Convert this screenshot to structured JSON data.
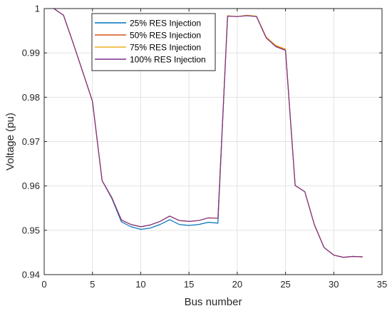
{
  "chart_data": {
    "type": "line",
    "xlabel": "Bus number",
    "ylabel": "Voltage (pu)",
    "xlim": [
      0,
      35
    ],
    "ylim": [
      0.94,
      1.0
    ],
    "xticks": [
      0,
      5,
      10,
      15,
      20,
      25,
      30,
      35
    ],
    "xtick_labels": [
      "0",
      "5",
      "10",
      "15",
      "20",
      "25",
      "30",
      "35"
    ],
    "yticks": [
      0.94,
      0.95,
      0.96,
      0.97,
      0.98,
      0.99,
      1.0
    ],
    "ytick_labels": [
      "0.94",
      "0.95",
      "0.96",
      "0.97",
      "0.98",
      "0.99",
      "1"
    ],
    "grid": true,
    "legend_position": "top-left",
    "x": [
      1,
      2,
      3,
      4,
      5,
      6,
      7,
      8,
      9,
      10,
      11,
      12,
      13,
      14,
      15,
      16,
      17,
      18,
      19,
      20,
      21,
      22,
      23,
      24,
      25,
      26,
      27,
      28,
      29,
      30,
      31,
      32,
      33
    ],
    "series": [
      {
        "name": "25% RES Injection",
        "color": "#0072BD",
        "values": [
          1.0,
          0.9985,
          0.9922,
          0.9857,
          0.9791,
          0.9612,
          0.9572,
          0.9519,
          0.9508,
          0.9502,
          0.9505,
          0.9513,
          0.9524,
          0.9513,
          0.9511,
          0.9513,
          0.9518,
          0.9516,
          0.9983,
          0.9982,
          0.9984,
          0.9982,
          0.9934,
          0.9914,
          0.9906,
          0.9601,
          0.9587,
          0.9512,
          0.9461,
          0.9444,
          0.9439,
          0.9441,
          0.944
        ]
      },
      {
        "name": "50% RES Injection",
        "color": "#D95319",
        "values": [
          1.0,
          0.9985,
          0.9922,
          0.9857,
          0.9791,
          0.9612,
          0.9574,
          0.9523,
          0.9513,
          0.9508,
          0.9512,
          0.952,
          0.9532,
          0.9522,
          0.952,
          0.9522,
          0.9528,
          0.9527,
          0.9983,
          0.9982,
          0.9984,
          0.9982,
          0.9934,
          0.9915,
          0.9907,
          0.9601,
          0.9587,
          0.9512,
          0.9461,
          0.9444,
          0.9439,
          0.9441,
          0.944
        ]
      },
      {
        "name": "75% RES Injection",
        "color": "#EDB120",
        "values": [
          1.0,
          0.9985,
          0.9922,
          0.9857,
          0.9791,
          0.9612,
          0.9574,
          0.9523,
          0.9513,
          0.9508,
          0.9512,
          0.952,
          0.9532,
          0.9522,
          0.952,
          0.9522,
          0.9528,
          0.9527,
          0.9984,
          0.9982,
          0.9985,
          0.9983,
          0.9936,
          0.9917,
          0.9909,
          0.9601,
          0.9587,
          0.9512,
          0.9461,
          0.9444,
          0.9439,
          0.9441,
          0.944
        ]
      },
      {
        "name": "100% RES Injection",
        "color": "#7E2F8E",
        "values": [
          1.0,
          0.9985,
          0.9922,
          0.9857,
          0.9791,
          0.9612,
          0.9574,
          0.9523,
          0.9513,
          0.9508,
          0.9512,
          0.952,
          0.9532,
          0.9522,
          0.952,
          0.9522,
          0.9528,
          0.9527,
          0.9983,
          0.9982,
          0.9984,
          0.9982,
          0.9934,
          0.9914,
          0.9906,
          0.9601,
          0.9587,
          0.9512,
          0.9461,
          0.9444,
          0.9439,
          0.9441,
          0.944
        ]
      }
    ]
  }
}
